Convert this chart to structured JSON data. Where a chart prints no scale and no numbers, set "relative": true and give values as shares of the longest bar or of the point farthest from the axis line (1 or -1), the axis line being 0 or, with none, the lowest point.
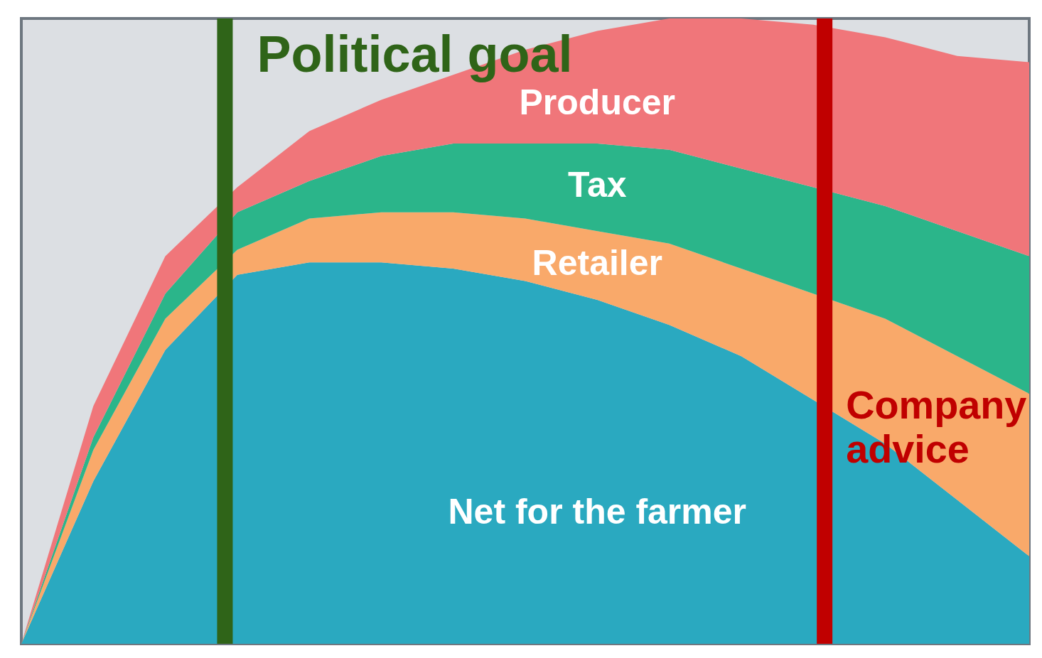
{
  "chart_data": {
    "type": "area",
    "stacked": true,
    "relative": true,
    "categories": [
      null,
      null,
      null,
      null,
      null,
      null,
      null,
      null,
      null,
      null,
      null,
      null,
      null,
      null,
      null
    ],
    "series": [
      {
        "name": "Net for the farmer",
        "color": "#2aa9c0",
        "values": [
          0,
          0.26,
          0.47,
          0.59,
          0.61,
          0.61,
          0.6,
          0.58,
          0.55,
          0.51,
          0.46,
          0.39,
          0.32,
          0.23,
          0.14
        ]
      },
      {
        "name": "Retailer",
        "color": "#f9a96a",
        "values": [
          0,
          0.05,
          0.05,
          0.04,
          0.07,
          0.08,
          0.09,
          0.1,
          0.11,
          0.13,
          0.14,
          0.17,
          0.2,
          0.23,
          0.26
        ]
      },
      {
        "name": "Tax",
        "color": "#2bb58a",
        "values": [
          0,
          0.02,
          0.04,
          0.06,
          0.06,
          0.09,
          0.11,
          0.12,
          0.14,
          0.15,
          0.16,
          0.17,
          0.18,
          0.2,
          0.22
        ]
      },
      {
        "name": "Producer",
        "color": "#f0767a",
        "values": [
          0,
          0.05,
          0.06,
          0.04,
          0.08,
          0.09,
          0.11,
          0.15,
          0.18,
          0.21,
          0.24,
          0.26,
          0.27,
          0.28,
          0.31
        ]
      }
    ],
    "annotations": [
      "Political goal",
      "Company advice"
    ]
  }
}
